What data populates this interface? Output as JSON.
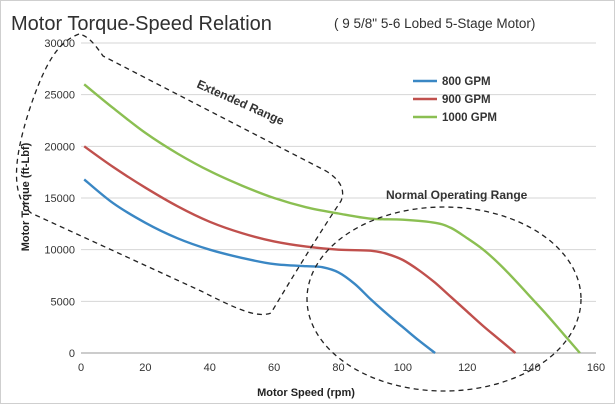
{
  "chart_data": {
    "type": "line",
    "title": "Motor Torque-Speed Relation",
    "subtitle": "( 9 5/8\" 5-6 Lobed 5-Stage Motor)",
    "xlabel": "Motor Speed (rpm)",
    "ylabel": "Motor Torque (ft-Lbf)",
    "xlim": [
      0,
      160
    ],
    "ylim": [
      0,
      30000
    ],
    "xticks": [
      "0",
      "20",
      "40",
      "60",
      "80",
      "100",
      "120",
      "140",
      "160"
    ],
    "yticks": [
      "0",
      "5000",
      "10000",
      "15000",
      "20000",
      "25000",
      "30000"
    ],
    "grid": "horizontal",
    "legend_position": "top-right",
    "series": [
      {
        "name": "800 GPM",
        "color": "#3a87c4",
        "x": [
          1,
          10,
          20,
          30,
          40,
          50,
          60,
          70,
          75,
          80,
          85,
          90,
          95,
          100,
          105,
          110
        ],
        "y": [
          16800,
          14500,
          12600,
          11100,
          10000,
          9200,
          8600,
          8400,
          8300,
          7800,
          6700,
          5200,
          3800,
          2500,
          1200,
          0
        ]
      },
      {
        "name": "900 GPM",
        "color": "#c0504d",
        "x": [
          1,
          10,
          20,
          30,
          40,
          50,
          60,
          70,
          80,
          90,
          95,
          100,
          105,
          110,
          115,
          120,
          125,
          130,
          135
        ],
        "y": [
          20000,
          18000,
          16000,
          14200,
          12700,
          11600,
          10800,
          10300,
          10000,
          9900,
          9600,
          9000,
          8000,
          6800,
          5400,
          4000,
          2600,
          1300,
          0
        ]
      },
      {
        "name": "1000 GPM",
        "color": "#8bbf52",
        "x": [
          1,
          10,
          20,
          30,
          40,
          50,
          60,
          70,
          80,
          90,
          100,
          110,
          115,
          120,
          125,
          130,
          135,
          140,
          145,
          150,
          155
        ],
        "y": [
          26000,
          23700,
          21300,
          19300,
          17600,
          16200,
          15000,
          14100,
          13500,
          13000,
          12900,
          12600,
          12100,
          11100,
          10000,
          8600,
          7000,
          5300,
          3600,
          1800,
          0
        ]
      }
    ],
    "annotations": [
      {
        "text": "Extended Range"
      },
      {
        "text": "Normal Operating Range"
      }
    ]
  }
}
